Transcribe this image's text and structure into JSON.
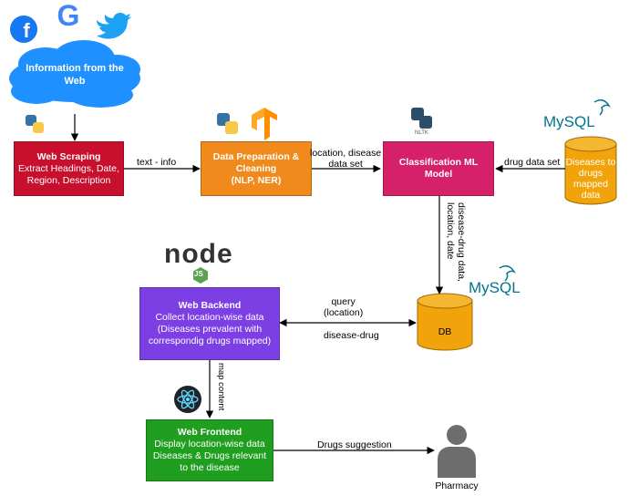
{
  "source": {
    "cloud_label": "Information from the Web",
    "logos": [
      "facebook-logo",
      "google-logo",
      "twitter-logo"
    ]
  },
  "nodes": {
    "web_scraping": {
      "title": "Web Scraping",
      "lines": [
        "Extract Headings, Date,",
        "Region, Description"
      ],
      "color": "#c8102e"
    },
    "data_prep": {
      "title": "Data Preparation &",
      "lines": [
        "Cleaning",
        "(NLP, NER)"
      ],
      "color": "#f08a1c"
    },
    "classification": {
      "title": "Classification ML",
      "lines": [
        "Model"
      ],
      "color": "#d6216a"
    },
    "mysql_source": {
      "lines": [
        "Diseases to",
        "drugs",
        "mapped",
        "data"
      ],
      "logo": "MySQL",
      "color": "#f0a30a"
    },
    "db": {
      "label": "DB",
      "logo": "MySQL",
      "color": "#f0a30a"
    },
    "backend": {
      "title": "Web Backend",
      "lines": [
        "Collect location-wise data",
        "(Diseases prevalent with",
        "correspondig drugs mapped)"
      ],
      "color": "#7b3fe4"
    },
    "frontend": {
      "title": "Web Frontend",
      "lines": [
        "Display location-wise data",
        "Diseases & Drugs relevant",
        "to the disease"
      ],
      "color": "#1f9e1f"
    },
    "pharmacy": {
      "label": "Pharmacy"
    }
  },
  "edges": {
    "scrape_to_prep": "text - info",
    "prep_to_class": [
      "location, disease",
      "data set"
    ],
    "mysql_to_class": "drug data set",
    "class_to_db": [
      "disease-drug data,",
      "location, date"
    ],
    "backend_db_query": [
      "query",
      "(location)"
    ],
    "db_to_backend": "disease-drug",
    "backend_to_frontend": "map content",
    "frontend_to_pharmacy": "Drugs suggestion"
  },
  "tech_logos": {
    "nltk": "NLTK",
    "node_text": "node",
    "node_js": "JS"
  }
}
